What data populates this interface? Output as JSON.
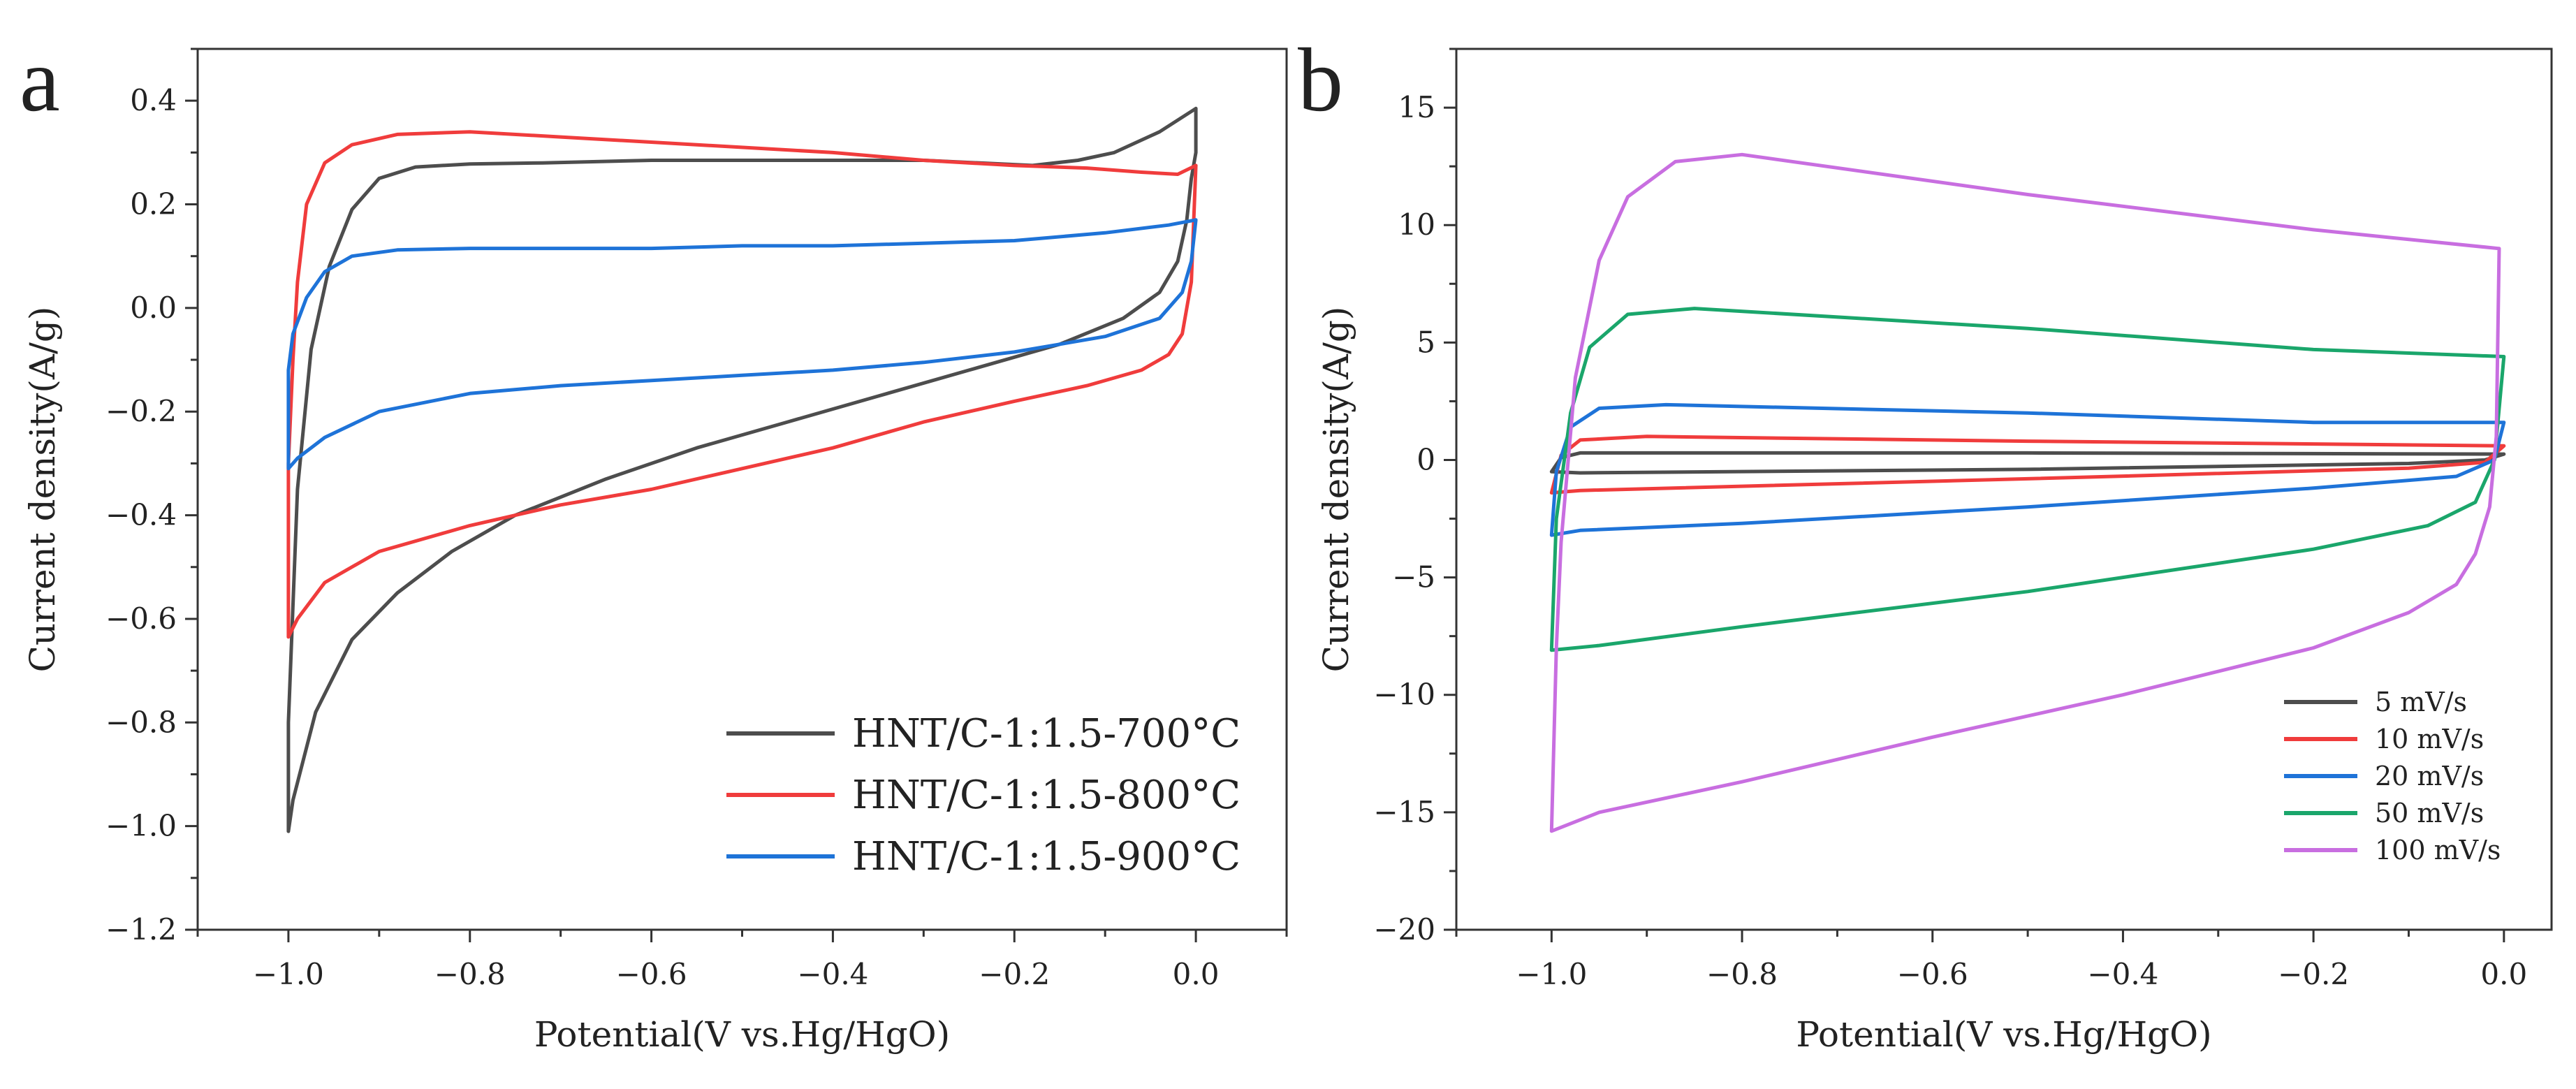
{
  "chart_data": [
    {
      "panel": "a",
      "type": "line",
      "title": "",
      "xlabel": "Potential(V vs.Hg/HgO)",
      "ylabel": "Current density(A/g)",
      "xlim": [
        -1.1,
        0.1
      ],
      "ylim": [
        -1.2,
        0.5
      ],
      "xticks": [
        -1.0,
        -0.8,
        -0.6,
        -0.4,
        -0.2,
        0.0
      ],
      "xtick_labels": [
        "-1.0",
        "-0.8",
        "-0.6",
        "-0.4",
        "-0.2",
        "0.0"
      ],
      "yticks": [
        -1.2,
        -1.0,
        -0.8,
        -0.6,
        -0.4,
        -0.2,
        0.0,
        0.2,
        0.4
      ],
      "ytick_labels": [
        "-1.2",
        "-1.0",
        "-0.8",
        "-0.6",
        "-0.4",
        "-0.2",
        "0.0",
        "0.2",
        "0.4"
      ],
      "grid": false,
      "legend_position": "bottom-right",
      "series": [
        {
          "name": "HNT/C-1:1.5-700°C",
          "color": "#4d4d4d",
          "points": [
            [
              -0.18,
              0.275
            ],
            [
              -0.3,
              0.285
            ],
            [
              -0.45,
              0.285
            ],
            [
              -0.6,
              0.285
            ],
            [
              -0.72,
              0.28
            ],
            [
              -0.8,
              0.278
            ],
            [
              -0.86,
              0.272
            ],
            [
              -0.9,
              0.25
            ],
            [
              -0.93,
              0.19
            ],
            [
              -0.955,
              0.08
            ],
            [
              -0.975,
              -0.08
            ],
            [
              -0.99,
              -0.35
            ],
            [
              -1.0,
              -0.8
            ],
            [
              -1.0,
              -1.01
            ],
            [
              -0.995,
              -0.95
            ],
            [
              -0.97,
              -0.78
            ],
            [
              -0.93,
              -0.64
            ],
            [
              -0.88,
              -0.55
            ],
            [
              -0.82,
              -0.47
            ],
            [
              -0.75,
              -0.4
            ],
            [
              -0.65,
              -0.33
            ],
            [
              -0.55,
              -0.27
            ],
            [
              -0.45,
              -0.22
            ],
            [
              -0.35,
              -0.17
            ],
            [
              -0.25,
              -0.12
            ],
            [
              -0.15,
              -0.07
            ],
            [
              -0.08,
              -0.02
            ],
            [
              -0.04,
              0.03
            ],
            [
              -0.02,
              0.09
            ],
            [
              -0.01,
              0.17
            ],
            [
              -0.005,
              0.25
            ],
            [
              0.0,
              0.3
            ],
            [
              0.0,
              0.385
            ],
            [
              -0.04,
              0.34
            ],
            [
              -0.09,
              0.3
            ],
            [
              -0.13,
              0.285
            ],
            [
              -0.18,
              0.275
            ]
          ]
        },
        {
          "name": "HNT/C-1:1.5-800°C",
          "color": "#f03c3c",
          "points": [
            [
              0.0,
              0.275
            ],
            [
              -0.02,
              0.258
            ],
            [
              -0.06,
              0.262
            ],
            [
              -0.12,
              0.27
            ],
            [
              -0.2,
              0.275
            ],
            [
              -0.3,
              0.285
            ],
            [
              -0.4,
              0.3
            ],
            [
              -0.55,
              0.315
            ],
            [
              -0.7,
              0.33
            ],
            [
              -0.8,
              0.34
            ],
            [
              -0.88,
              0.335
            ],
            [
              -0.93,
              0.315
            ],
            [
              -0.96,
              0.28
            ],
            [
              -0.98,
              0.2
            ],
            [
              -0.99,
              0.05
            ],
            [
              -0.995,
              -0.1
            ],
            [
              -1.0,
              -0.3
            ],
            [
              -1.0,
              -0.635
            ],
            [
              -0.99,
              -0.6
            ],
            [
              -0.96,
              -0.53
            ],
            [
              -0.9,
              -0.47
            ],
            [
              -0.8,
              -0.42
            ],
            [
              -0.7,
              -0.38
            ],
            [
              -0.6,
              -0.35
            ],
            [
              -0.5,
              -0.31
            ],
            [
              -0.4,
              -0.27
            ],
            [
              -0.3,
              -0.22
            ],
            [
              -0.2,
              -0.18
            ],
            [
              -0.12,
              -0.15
            ],
            [
              -0.06,
              -0.12
            ],
            [
              -0.03,
              -0.09
            ],
            [
              -0.015,
              -0.05
            ],
            [
              -0.005,
              0.05
            ],
            [
              0.0,
              0.275
            ]
          ]
        },
        {
          "name": "HNT/C-1:1.5-900°C",
          "color": "#1e73d8",
          "points": [
            [
              0.0,
              0.17
            ],
            [
              -0.03,
              0.16
            ],
            [
              -0.1,
              0.145
            ],
            [
              -0.2,
              0.13
            ],
            [
              -0.3,
              0.125
            ],
            [
              -0.4,
              0.12
            ],
            [
              -0.5,
              0.12
            ],
            [
              -0.6,
              0.115
            ],
            [
              -0.7,
              0.115
            ],
            [
              -0.8,
              0.115
            ],
            [
              -0.88,
              0.112
            ],
            [
              -0.93,
              0.1
            ],
            [
              -0.96,
              0.07
            ],
            [
              -0.98,
              0.02
            ],
            [
              -0.995,
              -0.05
            ],
            [
              -1.0,
              -0.12
            ],
            [
              -1.0,
              -0.31
            ],
            [
              -0.99,
              -0.29
            ],
            [
              -0.96,
              -0.25
            ],
            [
              -0.9,
              -0.2
            ],
            [
              -0.8,
              -0.165
            ],
            [
              -0.7,
              -0.15
            ],
            [
              -0.6,
              -0.14
            ],
            [
              -0.5,
              -0.13
            ],
            [
              -0.4,
              -0.12
            ],
            [
              -0.3,
              -0.105
            ],
            [
              -0.2,
              -0.085
            ],
            [
              -0.1,
              -0.055
            ],
            [
              -0.04,
              -0.02
            ],
            [
              -0.015,
              0.03
            ],
            [
              -0.005,
              0.09
            ],
            [
              0.0,
              0.17
            ]
          ]
        }
      ]
    },
    {
      "panel": "b",
      "type": "line",
      "title": "",
      "xlabel": "Potential(V vs.Hg/HgO)",
      "ylabel": "Current density(A/g)",
      "xlim": [
        -1.1,
        0.05
      ],
      "ylim": [
        -20,
        17.5
      ],
      "xticks": [
        -1.0,
        -0.8,
        -0.6,
        -0.4,
        -0.2,
        0.0
      ],
      "xtick_labels": [
        "-1.0",
        "-0.8",
        "-0.6",
        "-0.4",
        "-0.2",
        "0.0"
      ],
      "yticks": [
        -20,
        -15,
        -10,
        -5,
        0,
        5,
        10,
        15
      ],
      "ytick_labels": [
        "-20",
        "-15",
        "-10",
        "-5",
        "0",
        "5",
        "10",
        "15"
      ],
      "grid": false,
      "legend_position": "bottom-right",
      "series": [
        {
          "name": "5 mV/s",
          "color": "#4d4d4d",
          "points": [
            [
              0.0,
              0.25
            ],
            [
              -0.5,
              0.3
            ],
            [
              -0.97,
              0.3
            ],
            [
              -0.99,
              0.1
            ],
            [
              -1.0,
              -0.5
            ],
            [
              -0.97,
              -0.55
            ],
            [
              -0.5,
              -0.4
            ],
            [
              -0.1,
              -0.15
            ],
            [
              -0.02,
              0.0
            ],
            [
              0.0,
              0.25
            ]
          ]
        },
        {
          "name": "10 mV/s",
          "color": "#f03c3c",
          "points": [
            [
              0.0,
              0.6
            ],
            [
              -0.5,
              0.8
            ],
            [
              -0.9,
              1.0
            ],
            [
              -0.97,
              0.85
            ],
            [
              -0.99,
              0.2
            ],
            [
              -1.0,
              -1.4
            ],
            [
              -0.97,
              -1.3
            ],
            [
              -0.5,
              -0.8
            ],
            [
              -0.1,
              -0.35
            ],
            [
              -0.02,
              -0.1
            ],
            [
              0.0,
              0.6
            ]
          ]
        },
        {
          "name": "20 mV/s",
          "color": "#1e73d8",
          "points": [
            [
              0.0,
              1.6
            ],
            [
              -0.2,
              1.6
            ],
            [
              -0.5,
              2.0
            ],
            [
              -0.88,
              2.35
            ],
            [
              -0.95,
              2.2
            ],
            [
              -0.98,
              1.4
            ],
            [
              -0.995,
              -0.5
            ],
            [
              -1.0,
              -3.2
            ],
            [
              -0.97,
              -3.0
            ],
            [
              -0.8,
              -2.7
            ],
            [
              -0.5,
              -2.0
            ],
            [
              -0.2,
              -1.2
            ],
            [
              -0.05,
              -0.7
            ],
            [
              -0.01,
              0.0
            ],
            [
              0.0,
              1.6
            ]
          ]
        },
        {
          "name": "50 mV/s",
          "color": "#1aa66b",
          "points": [
            [
              0.0,
              4.4
            ],
            [
              -0.2,
              4.7
            ],
            [
              -0.5,
              5.6
            ],
            [
              -0.85,
              6.45
            ],
            [
              -0.92,
              6.2
            ],
            [
              -0.96,
              4.8
            ],
            [
              -0.98,
              2.0
            ],
            [
              -0.995,
              -2.5
            ],
            [
              -1.0,
              -8.1
            ],
            [
              -0.95,
              -7.9
            ],
            [
              -0.8,
              -7.1
            ],
            [
              -0.5,
              -5.6
            ],
            [
              -0.2,
              -3.8
            ],
            [
              -0.08,
              -2.8
            ],
            [
              -0.03,
              -1.8
            ],
            [
              -0.01,
              0.0
            ],
            [
              0.0,
              4.4
            ]
          ]
        },
        {
          "name": "100 mV/s",
          "color": "#c86ee0",
          "points": [
            [
              -0.005,
              9.0
            ],
            [
              -0.2,
              9.8
            ],
            [
              -0.5,
              11.3
            ],
            [
              -0.8,
              13.0
            ],
            [
              -0.87,
              12.7
            ],
            [
              -0.92,
              11.2
            ],
            [
              -0.95,
              8.5
            ],
            [
              -0.975,
              3.5
            ],
            [
              -0.99,
              -3.5
            ],
            [
              -0.995,
              -8.0
            ],
            [
              -1.0,
              -15.8
            ],
            [
              -0.95,
              -15.0
            ],
            [
              -0.8,
              -13.7
            ],
            [
              -0.6,
              -11.8
            ],
            [
              -0.4,
              -10.0
            ],
            [
              -0.2,
              -8.0
            ],
            [
              -0.1,
              -6.5
            ],
            [
              -0.05,
              -5.3
            ],
            [
              -0.03,
              -4.0
            ],
            [
              -0.015,
              -2.0
            ],
            [
              -0.008,
              1.0
            ],
            [
              -0.005,
              9.0
            ]
          ]
        }
      ]
    }
  ]
}
